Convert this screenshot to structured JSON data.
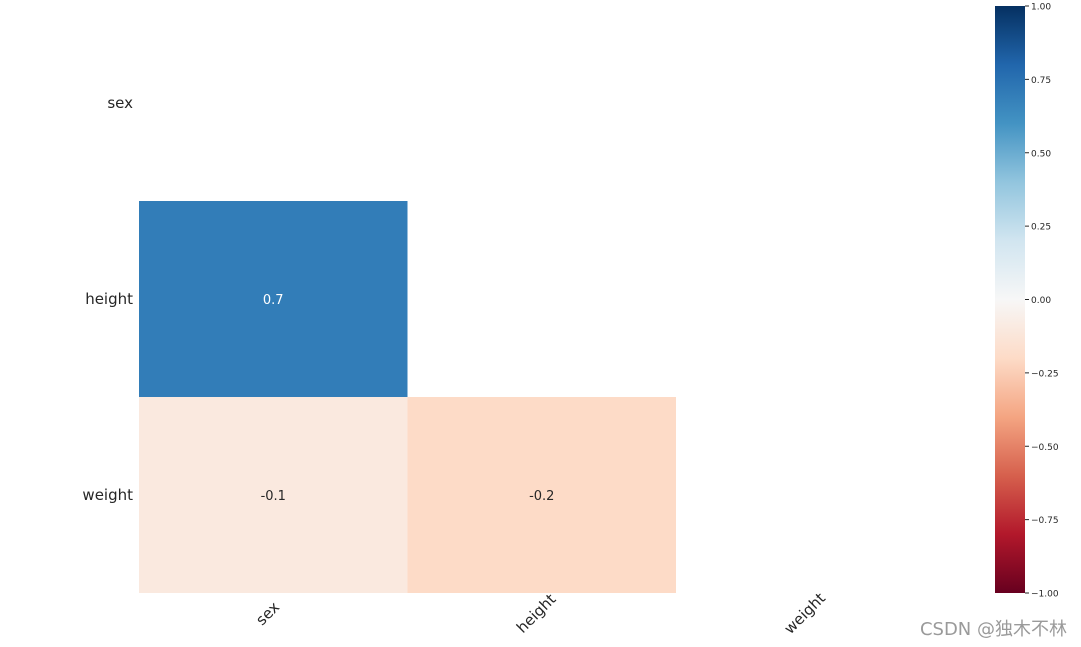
{
  "chart_data": {
    "type": "heatmap",
    "title": "",
    "xlabel": "",
    "ylabel": "",
    "row_labels": [
      "sex",
      "height",
      "weight"
    ],
    "col_labels": [
      "sex",
      "height",
      "weight"
    ],
    "cells": [
      {
        "row": 1,
        "col": 0,
        "value": 0.7,
        "label": "0.7"
      },
      {
        "row": 2,
        "col": 0,
        "value": -0.1,
        "label": "-0.1"
      },
      {
        "row": 2,
        "col": 1,
        "value": -0.2,
        "label": "-0.2"
      }
    ],
    "mask": "upper-triangle-and-diagonal",
    "colormap": "RdBu",
    "vmin": -1,
    "vmax": 1,
    "colorbar_ticks": [
      {
        "value": 1.0,
        "label": "1.00"
      },
      {
        "value": 0.75,
        "label": "0.75"
      },
      {
        "value": 0.5,
        "label": "0.50"
      },
      {
        "value": 0.25,
        "label": "0.25"
      },
      {
        "value": 0.0,
        "label": "0.00"
      },
      {
        "value": -0.25,
        "label": "−0.25"
      },
      {
        "value": -0.5,
        "label": "−0.50"
      },
      {
        "value": -0.75,
        "label": "−0.75"
      },
      {
        "value": -1.0,
        "label": "−1.00"
      }
    ],
    "colorbar_position": "right",
    "colors": {
      "cell_text_dark": "#262626",
      "cell_text_light": "#ffffff"
    }
  },
  "watermark": "CSDN @独木不林"
}
